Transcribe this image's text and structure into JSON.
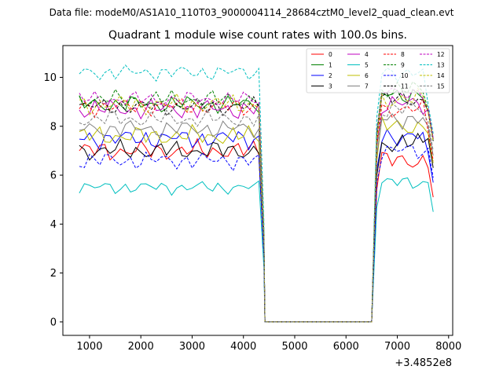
{
  "suptitle": "Data file: modeM0/AS1A10_110T03_9000004114_28684cztM0_level2_quad_clean.evt",
  "chart_data": {
    "type": "line",
    "title": "Quadrant 1 module wise count rates with 100.0s bins.",
    "xlabel": "",
    "ylabel": "",
    "x_offset_label": "+3.4852e8",
    "xlim": [
      480,
      8080
    ],
    "ylim": [
      -0.55,
      11.3
    ],
    "xticks": [
      1000,
      2000,
      3000,
      4000,
      5000,
      6000,
      7000,
      8000
    ],
    "yticks": [
      0,
      2,
      4,
      6,
      8,
      10
    ],
    "x_start": 800,
    "x_step": 100,
    "gap": {
      "drop_start": 4300,
      "drop_end": 4420,
      "zero_end": 6500
    },
    "legend_location": "upper right",
    "series": [
      {
        "name": "0",
        "color": "#ff0000",
        "dash": "solid",
        "base": 7.0,
        "base2": 6.6,
        "end": 5.1,
        "amp": 0.45
      },
      {
        "name": "1",
        "color": "#008000",
        "dash": "solid",
        "base": 8.9,
        "base2": 9.3,
        "end": 7.4,
        "amp": 0.4
      },
      {
        "name": "2",
        "color": "#0000ff",
        "dash": "solid",
        "base": 7.5,
        "base2": 7.6,
        "end": 5.7,
        "amp": 0.45
      },
      {
        "name": "3",
        "color": "#000000",
        "dash": "solid",
        "base": 7.0,
        "base2": 7.3,
        "end": 6.3,
        "amp": 0.45
      },
      {
        "name": "4",
        "color": "#bf00bf",
        "dash": "solid",
        "base": 8.7,
        "base2": 8.9,
        "end": 7.5,
        "amp": 0.45
      },
      {
        "name": "5",
        "color": "#00bfbf",
        "dash": "solid",
        "base": 5.5,
        "base2": 5.7,
        "end": 4.5,
        "amp": 0.3
      },
      {
        "name": "6",
        "color": "#bfbf00",
        "dash": "solid",
        "base": 7.6,
        "base2": 8.0,
        "end": 6.5,
        "amp": 0.45
      },
      {
        "name": "7",
        "color": "#808080",
        "dash": "solid",
        "base": 7.9,
        "base2": 8.3,
        "end": 6.8,
        "amp": 0.4
      },
      {
        "name": "8",
        "color": "#ff0000",
        "dash": "dashed",
        "base": 8.8,
        "base2": 8.7,
        "end": 6.6,
        "amp": 0.4
      },
      {
        "name": "9",
        "color": "#008000",
        "dash": "dashed",
        "base": 9.1,
        "base2": 9.5,
        "end": 7.5,
        "amp": 0.4
      },
      {
        "name": "10",
        "color": "#0000ff",
        "dash": "dashed",
        "base": 6.6,
        "base2": 7.0,
        "end": 5.9,
        "amp": 0.4
      },
      {
        "name": "11",
        "color": "#000000",
        "dash": "dashed",
        "base": 8.8,
        "base2": 9.1,
        "end": 7.4,
        "amp": 0.4
      },
      {
        "name": "12",
        "color": "#bf00bf",
        "dash": "dashed",
        "base": 9.1,
        "base2": 9.4,
        "end": 7.5,
        "amp": 0.35
      },
      {
        "name": "13",
        "color": "#00bfbf",
        "dash": "dashed",
        "base": 10.2,
        "base2": 10.2,
        "end": 7.7,
        "amp": 0.35
      },
      {
        "name": "14",
        "color": "#bfbf00",
        "dash": "dashed",
        "base": 8.9,
        "base2": 9.1,
        "end": 7.4,
        "amp": 0.45
      },
      {
        "name": "15",
        "color": "#808080",
        "dash": "dashed",
        "base": 8.3,
        "base2": 8.7,
        "end": 7.0,
        "amp": 0.4
      }
    ]
  }
}
